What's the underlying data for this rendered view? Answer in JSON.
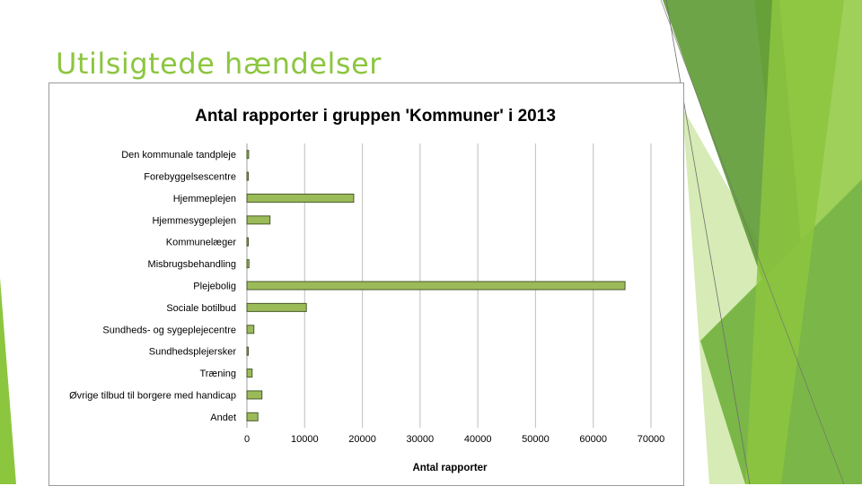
{
  "slide": {
    "title": "Utilsigtede hændelser",
    "title_color": "#8cc63f"
  },
  "theme": {
    "green_dark": "#5e9a34",
    "green_mid": "#7ab648",
    "green_light": "#b6dc7a",
    "green_pale": "#d7ebb6"
  },
  "chart_data": {
    "type": "bar",
    "orientation": "horizontal",
    "title": "Antal rapporter i gruppen 'Kommuner' i 2013",
    "xlabel": "Antal rapporter",
    "ylabel": "",
    "categories": [
      "Den kommunale tandpleje",
      "Forebyggelsescentre",
      "Hjemmeplejen",
      "Hjemmesygeplejen",
      "Kommunelæger",
      "Misbrugsbehandling",
      "Plejebolig",
      "Sociale botilbud",
      "Sundheds- og sygeplejecentre",
      "Sundhedsplejersker",
      "Træning",
      "Øvrige tilbud til borgere med handicap",
      "Andet"
    ],
    "values": [
      300,
      100,
      18500,
      4000,
      150,
      350,
      65500,
      10300,
      1200,
      150,
      900,
      2600,
      1900
    ],
    "xlim": [
      0,
      70000
    ],
    "xticks": [
      "0",
      "10000",
      "20000",
      "30000",
      "40000",
      "50000",
      "60000",
      "70000"
    ],
    "grid": true,
    "legend": "none",
    "bar_color": "#9bbb59",
    "bar_edge": "#4a5a2c"
  }
}
